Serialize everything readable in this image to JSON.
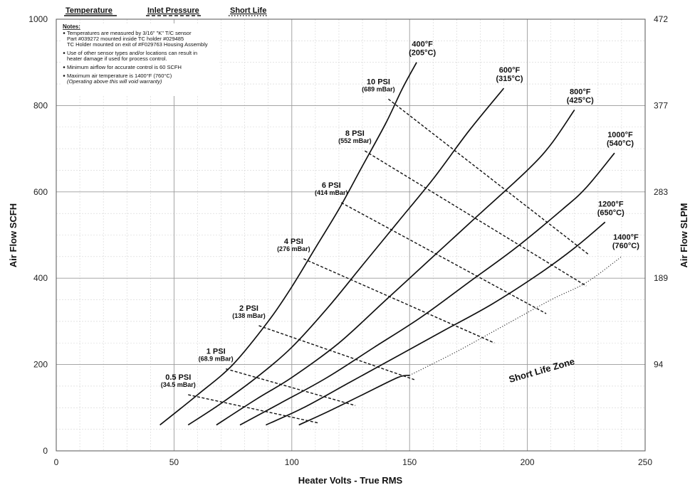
{
  "chart_data": {
    "type": "line",
    "xlabel": "Heater Volts - True RMS",
    "ylabel": "Air Flow SCFH",
    "y2label": "Air Flow SLPM",
    "xlim": [
      0,
      250
    ],
    "ylim": [
      0,
      1000
    ],
    "x_ticks": [
      "0",
      "50",
      "100",
      "150",
      "200",
      "250"
    ],
    "y_ticks": [
      "0",
      "200",
      "400",
      "600",
      "800",
      "1000"
    ],
    "y2_ticks": [
      {
        "value": 1000,
        "label": "472"
      },
      {
        "value": 800,
        "label": "377"
      },
      {
        "value": 600,
        "label": "283"
      },
      {
        "value": 400,
        "label": "189"
      },
      {
        "value": 200,
        "label": "94"
      }
    ],
    "grid": true,
    "legend": {
      "placement": "top-left",
      "items": [
        {
          "label": "Temperature",
          "style": "solid"
        },
        {
          "label": "Inlet Pressure",
          "style": "dashed"
        },
        {
          "label": "Short Life",
          "style": "dotted"
        }
      ]
    },
    "notes": {
      "title": "Notes:",
      "items": [
        {
          "lines": [
            "Temperatures are measured by 3/16\" \"K\" T/C sensor",
            "Part #039272 mounted inside TC holder #029485",
            "TC Holder mounted on exit of #F029763 Housing Assembly"
          ],
          "italic": [
            false,
            false,
            false
          ]
        },
        {
          "lines": [
            "Use of other sensor types and/or locations can result in",
            "heater damage if used for process control."
          ],
          "italic": [
            false,
            false
          ]
        },
        {
          "lines": [
            "Minimum airflow for accurate control is 60 SCFH"
          ],
          "italic": [
            false
          ]
        },
        {
          "lines": [
            "Maximum air temperature is 1400°F (760°C)",
            "(Operating above this will void warranty)"
          ],
          "italic": [
            false,
            true
          ]
        }
      ]
    },
    "temperature_series": [
      {
        "name": "400°F",
        "name2": "(205°C)",
        "x": [
          44,
          60,
          75,
          90,
          100,
          110,
          120,
          130,
          140,
          147,
          153
        ],
        "y": [
          60,
          130,
          200,
          300,
          380,
          470,
          560,
          660,
          760,
          840,
          900
        ]
      },
      {
        "name": "600°F",
        "name2": "(315°C)",
        "x": [
          56,
          70,
          85,
          100,
          115,
          130,
          145,
          160,
          175,
          190
        ],
        "y": [
          60,
          110,
          170,
          240,
          330,
          430,
          530,
          630,
          740,
          840
        ]
      },
      {
        "name": "800°F",
        "name2": "(425°C)",
        "x": [
          68,
          85,
          100,
          120,
          140,
          160,
          180,
          200,
          210,
          220
        ],
        "y": [
          60,
          120,
          170,
          250,
          350,
          450,
          550,
          650,
          710,
          790
        ]
      },
      {
        "name": "1000°F",
        "name2": "(540°C)",
        "x": [
          78,
          95,
          115,
          135,
          155,
          175,
          195,
          215,
          225,
          237
        ],
        "y": [
          60,
          110,
          170,
          240,
          310,
          390,
          470,
          560,
          610,
          690
        ]
      },
      {
        "name": "1200°F",
        "name2": "(650°C)",
        "x": [
          89,
          105,
          125,
          145,
          165,
          185,
          205,
          220,
          233
        ],
        "y": [
          60,
          100,
          160,
          220,
          280,
          340,
          410,
          470,
          530
        ]
      },
      {
        "name": "1400°F",
        "name2": "(760°C)",
        "x": [
          103,
          115,
          130,
          145,
          150
        ],
        "y": [
          60,
          90,
          130,
          170,
          175
        ],
        "short_life_x": [
          150,
          170,
          190,
          210,
          225,
          240
        ],
        "short_life_y": [
          175,
          230,
          290,
          350,
          390,
          450
        ]
      }
    ],
    "pressure_series": [
      {
        "name": "0.5 PSI",
        "name2": "(34.5 mBar)",
        "x": [
          56,
          111
        ],
        "y": [
          130,
          65
        ]
      },
      {
        "name": "1 PSI",
        "name2": "(68.9 mBar)",
        "x": [
          72,
          127
        ],
        "y": [
          190,
          105
        ]
      },
      {
        "name": "2 PSI",
        "name2": "(138 mBar)",
        "x": [
          86,
          152
        ],
        "y": [
          290,
          165
        ]
      },
      {
        "name": "4 PSI",
        "name2": "(276 mBar)",
        "x": [
          105,
          186
        ],
        "y": [
          445,
          250
        ]
      },
      {
        "name": "6 PSI",
        "name2": "(414 mBar)",
        "x": [
          121,
          208
        ],
        "y": [
          575,
          318
        ]
      },
      {
        "name": "8 PSI",
        "name2": "(552 mBar)",
        "x": [
          131,
          225
        ],
        "y": [
          695,
          382
        ]
      },
      {
        "name": "10 PSI",
        "name2": "(689 mBar)",
        "x": [
          141,
          226
        ],
        "y": [
          815,
          455
        ]
      }
    ],
    "zone_label": "Short Life Zone"
  }
}
